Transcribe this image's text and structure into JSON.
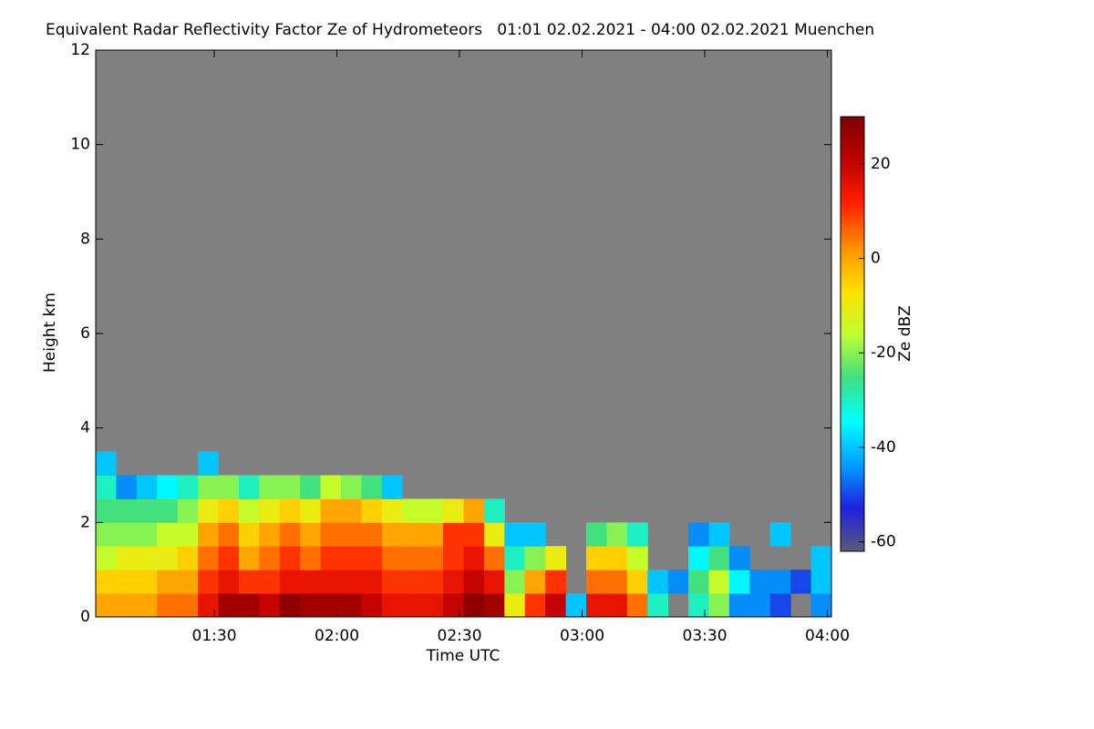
{
  "chart_data": {
    "type": "heatmap",
    "title": "Equivalent Radar Reflectivity Factor Ze of Hydrometeors   01:01 02.02.2021 - 04:00 02.02.2021 Muenchen",
    "x_label": "Time UTC",
    "y_label": "Height km",
    "colorbar_label": "Ze dBZ",
    "xlim": [
      61,
      241
    ],
    "xticks": [
      {
        "value": 90,
        "label": "01:30"
      },
      {
        "value": 120,
        "label": "02:00"
      },
      {
        "value": 150,
        "label": "02:30"
      },
      {
        "value": 180,
        "label": "03:00"
      },
      {
        "value": 210,
        "label": "03:30"
      },
      {
        "value": 240,
        "label": "04:00"
      }
    ],
    "ylim": [
      0,
      12
    ],
    "yticks": [
      0,
      2,
      4,
      6,
      8,
      10,
      12
    ],
    "zlim": [
      -62,
      30
    ],
    "zticks": [
      -60,
      -40,
      -20,
      0,
      20
    ],
    "background": "#808080",
    "colormap": [
      "#5a5a78",
      "#2020e0",
      "#00a0ff",
      "#00ffff",
      "#40e080",
      "#c0ff30",
      "#ffe000",
      "#ff9000",
      "#ff2000",
      "#c00000",
      "#800000"
    ],
    "x": [
      61,
      66,
      71,
      76,
      81,
      86,
      91,
      96,
      101,
      106,
      111,
      116,
      121,
      126,
      131,
      136,
      141,
      146,
      151,
      156,
      161,
      166,
      171,
      176,
      181,
      186,
      191,
      196,
      201,
      206,
      211,
      216,
      221,
      226,
      231,
      236
    ],
    "x_step": 5,
    "y": [
      0,
      0.5,
      1,
      1.5,
      2,
      2.5,
      3
    ],
    "y_step": 0.5,
    "z": [
      [
        0,
        0,
        0,
        5,
        5,
        15,
        25,
        25,
        20,
        28,
        25,
        25,
        25,
        20,
        15,
        15,
        15,
        20,
        28,
        25,
        -10,
        10,
        20,
        -40,
        15,
        15,
        5,
        -30,
        null,
        -30,
        -20,
        -45,
        -45,
        -50,
        null,
        -45
      ],
      [
        -5,
        -5,
        -5,
        0,
        0,
        10,
        15,
        10,
        10,
        15,
        15,
        15,
        15,
        15,
        10,
        10,
        10,
        15,
        20,
        15,
        -20,
        0,
        10,
        null,
        5,
        5,
        -5,
        -40,
        -45,
        -25,
        -15,
        -35,
        -45,
        -45,
        -50,
        -40
      ],
      [
        -15,
        -10,
        -10,
        -10,
        -5,
        5,
        10,
        0,
        5,
        10,
        5,
        10,
        10,
        10,
        5,
        5,
        5,
        10,
        15,
        5,
        -30,
        -20,
        -10,
        null,
        -5,
        -5,
        -15,
        null,
        null,
        -35,
        -25,
        -45,
        null,
        null,
        null,
        -40
      ],
      [
        -20,
        -20,
        -20,
        -15,
        -15,
        0,
        5,
        -5,
        0,
        5,
        0,
        5,
        5,
        5,
        0,
        0,
        0,
        10,
        10,
        -10,
        -40,
        -40,
        null,
        null,
        -25,
        -20,
        -30,
        null,
        null,
        -45,
        -40,
        null,
        null,
        -40,
        null,
        null
      ],
      [
        -25,
        -25,
        -25,
        -25,
        -20,
        -10,
        -5,
        -15,
        -10,
        -5,
        -10,
        0,
        0,
        -5,
        -10,
        -15,
        -15,
        -10,
        0,
        -30,
        null,
        null,
        null,
        null,
        null,
        null,
        null,
        null,
        null,
        null,
        null,
        null,
        null,
        null,
        null,
        null
      ],
      [
        -30,
        -45,
        -40,
        -35,
        -30,
        -20,
        -20,
        -30,
        -20,
        -20,
        -25,
        -15,
        -20,
        -25,
        -40,
        null,
        null,
        null,
        null,
        null,
        null,
        null,
        null,
        null,
        null,
        null,
        null,
        null,
        null,
        null,
        null,
        null,
        null,
        null,
        null,
        null
      ],
      [
        -40,
        null,
        null,
        null,
        null,
        -40,
        null,
        null,
        null,
        null,
        null,
        null,
        null,
        null,
        null,
        null,
        null,
        null,
        null,
        null,
        null,
        null,
        null,
        null,
        null,
        null,
        null,
        null,
        null,
        null,
        null,
        null,
        null,
        null,
        null,
        null
      ]
    ]
  }
}
